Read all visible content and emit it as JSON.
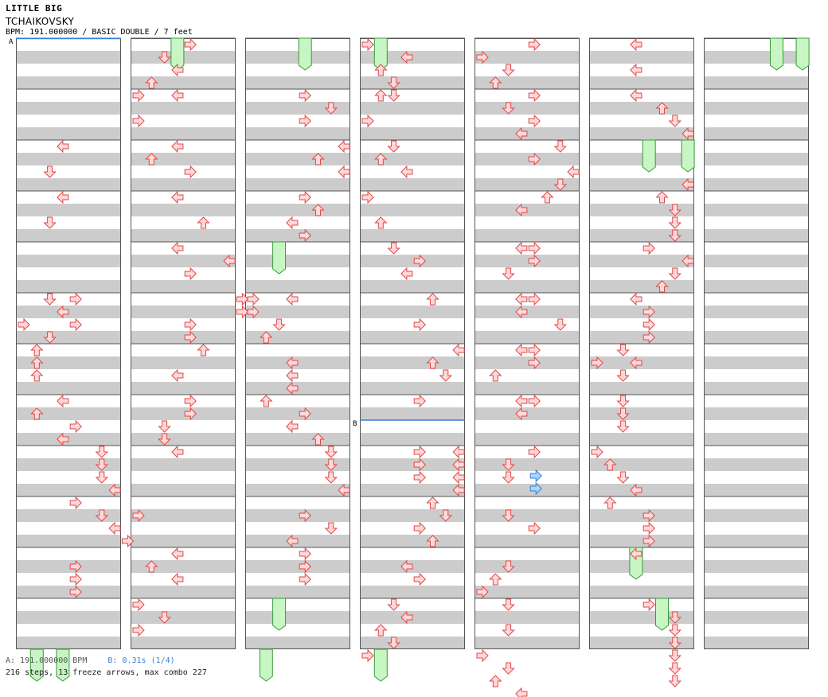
{
  "song": {
    "title": "LITTLE BIG",
    "artist": "TCHAIKOVSKY",
    "info": "BPM: 191.000000 / BASIC DOUBLE / 7 feet"
  },
  "markers": [
    {
      "label": "A"
    },
    {
      "label": "B"
    }
  ],
  "footer": {
    "bpm_a": "A: 191.000000 BPM",
    "bpm_b": "B: 0.31s (1/4)",
    "stats": "216 steps, 13 freeze arrows, max combo 227"
  },
  "colors": {
    "stripe": "#cccccc",
    "arrow_fill": "#ffd9d9",
    "arrow_stroke": "#e04848",
    "freeze_fill": "#c8f5c4",
    "freeze_stroke": "#3a9a3a",
    "stop_arrow_fill": "#a8d4ff",
    "stop_arrow_stroke": "#3a7fd6",
    "bpm_line": "#3a7fd6"
  },
  "chart_data": {
    "type": "step-chart",
    "columns": 7,
    "measures_per_column": 12,
    "lanes": [
      "left-1p",
      "down-1p",
      "up-1p",
      "right-1p",
      "left-2p",
      "down-2p",
      "up-2p",
      "right-2p"
    ],
    "arrows": [
      [
        0,
        1,
        4,
        3
      ],
      [
        0,
        1,
        6,
        2
      ],
      [
        0,
        3,
        0,
        3
      ],
      [
        0,
        3,
        2,
        2
      ],
      [
        0,
        4,
        4,
        4
      ],
      [
        0,
        4,
        6,
        4
      ],
      [
        0,
        5,
        0,
        2
      ],
      [
        0,
        5,
        1,
        3
      ],
      [
        0,
        5,
        2,
        0
      ],
      [
        0,
        5,
        3,
        2
      ],
      [
        0,
        6,
        0,
        1
      ],
      [
        0,
        6,
        1,
        1
      ],
      [
        0,
        6,
        2,
        1
      ],
      [
        0,
        7,
        0,
        3
      ],
      [
        0,
        7,
        1,
        1
      ],
      [
        0,
        7,
        2,
        4
      ],
      [
        0,
        7,
        3,
        3
      ],
      [
        0,
        8,
        0,
        6
      ],
      [
        0,
        8,
        1,
        6
      ],
      [
        0,
        8,
        2,
        6
      ],
      [
        0,
        8,
        3,
        7
      ],
      [
        0,
        9,
        0,
        4
      ],
      [
        0,
        9,
        1,
        6
      ],
      [
        0,
        9,
        2,
        7
      ],
      [
        0,
        9,
        3,
        8
      ],
      [
        0,
        10,
        1,
        4
      ],
      [
        0,
        10,
        2,
        4
      ],
      [
        0,
        10,
        3,
        4
      ],
      [
        1,
        0,
        0,
        4
      ],
      [
        1,
        0,
        1,
        2
      ],
      [
        1,
        0,
        2,
        3
      ],
      [
        1,
        0,
        3,
        1
      ],
      [
        1,
        1,
        0,
        0
      ],
      [
        1,
        1,
        0,
        3
      ],
      [
        1,
        1,
        2,
        0
      ],
      [
        1,
        2,
        0,
        3
      ],
      [
        1,
        2,
        1,
        1
      ],
      [
        1,
        2,
        2,
        4
      ],
      [
        1,
        3,
        0,
        3
      ],
      [
        1,
        3,
        2,
        5
      ],
      [
        1,
        4,
        0,
        3
      ],
      [
        1,
        4,
        1,
        7
      ],
      [
        1,
        4,
        2,
        4
      ],
      [
        1,
        5,
        0,
        8
      ],
      [
        1,
        5,
        1,
        8
      ],
      [
        1,
        5,
        2,
        4
      ],
      [
        1,
        5,
        3,
        4
      ],
      [
        1,
        6,
        0,
        5
      ],
      [
        1,
        6,
        2,
        3
      ],
      [
        1,
        7,
        0,
        4
      ],
      [
        1,
        7,
        1,
        4
      ],
      [
        1,
        7,
        2,
        2
      ],
      [
        1,
        7,
        3,
        2
      ],
      [
        1,
        8,
        0,
        3
      ],
      [
        1,
        9,
        1,
        0
      ],
      [
        1,
        10,
        0,
        3
      ],
      [
        1,
        10,
        1,
        1
      ],
      [
        1,
        10,
        2,
        3
      ],
      [
        1,
        11,
        0,
        0
      ],
      [
        1,
        11,
        1,
        2
      ],
      [
        1,
        11,
        2,
        0
      ],
      [
        2,
        1,
        0,
        4
      ],
      [
        2,
        1,
        1,
        6
      ],
      [
        2,
        1,
        2,
        4
      ],
      [
        2,
        2,
        0,
        7
      ],
      [
        2,
        2,
        1,
        5
      ],
      [
        2,
        2,
        2,
        7
      ],
      [
        2,
        3,
        0,
        4
      ],
      [
        2,
        3,
        1,
        5
      ],
      [
        2,
        3,
        2,
        3
      ],
      [
        2,
        3,
        3,
        4
      ],
      [
        2,
        5,
        0,
        0
      ],
      [
        2,
        5,
        0,
        3
      ],
      [
        2,
        5,
        1,
        0
      ],
      [
        2,
        5,
        2,
        2
      ],
      [
        2,
        5,
        3,
        1
      ],
      [
        2,
        6,
        1,
        3
      ],
      [
        2,
        6,
        2,
        3
      ],
      [
        2,
        6,
        3,
        3
      ],
      [
        2,
        7,
        0,
        1
      ],
      [
        2,
        7,
        1,
        4
      ],
      [
        2,
        7,
        2,
        3
      ],
      [
        2,
        7,
        3,
        5
      ],
      [
        2,
        8,
        0,
        6
      ],
      [
        2,
        8,
        1,
        6
      ],
      [
        2,
        8,
        2,
        6
      ],
      [
        2,
        8,
        3,
        7
      ],
      [
        2,
        9,
        1,
        4
      ],
      [
        2,
        9,
        2,
        6
      ],
      [
        2,
        9,
        3,
        3
      ],
      [
        2,
        10,
        0,
        4
      ],
      [
        2,
        10,
        1,
        4
      ],
      [
        2,
        10,
        2,
        4
      ],
      [
        3,
        0,
        0,
        0
      ],
      [
        3,
        0,
        1,
        3
      ],
      [
        3,
        0,
        2,
        1
      ],
      [
        3,
        0,
        3,
        2
      ],
      [
        3,
        1,
        0,
        1
      ],
      [
        3,
        1,
        0,
        2
      ],
      [
        3,
        1,
        2,
        0
      ],
      [
        3,
        2,
        0,
        2
      ],
      [
        3,
        2,
        1,
        1
      ],
      [
        3,
        2,
        2,
        3
      ],
      [
        3,
        3,
        0,
        0
      ],
      [
        3,
        3,
        2,
        1
      ],
      [
        3,
        4,
        0,
        2
      ],
      [
        3,
        4,
        1,
        4
      ],
      [
        3,
        4,
        2,
        3
      ],
      [
        3,
        5,
        0,
        5
      ],
      [
        3,
        5,
        2,
        4
      ],
      [
        3,
        6,
        0,
        7
      ],
      [
        3,
        6,
        1,
        5
      ],
      [
        3,
        6,
        2,
        6
      ],
      [
        3,
        7,
        0,
        4
      ],
      [
        3,
        8,
        0,
        4
      ],
      [
        3,
        8,
        0,
        7
      ],
      [
        3,
        8,
        1,
        4
      ],
      [
        3,
        8,
        1,
        7
      ],
      [
        3,
        8,
        2,
        4
      ],
      [
        3,
        8,
        2,
        7
      ],
      [
        3,
        8,
        3,
        7
      ],
      [
        3,
        9,
        0,
        5
      ],
      [
        3,
        9,
        1,
        6
      ],
      [
        3,
        9,
        2,
        4
      ],
      [
        3,
        9,
        3,
        5
      ],
      [
        3,
        10,
        1,
        3
      ],
      [
        3,
        10,
        2,
        4
      ],
      [
        3,
        11,
        0,
        2
      ],
      [
        3,
        11,
        1,
        3
      ],
      [
        3,
        11,
        2,
        1
      ],
      [
        3,
        11,
        3,
        2
      ],
      [
        3,
        12,
        0,
        0
      ],
      [
        4,
        0,
        0,
        4
      ],
      [
        4,
        0,
        1,
        0
      ],
      [
        4,
        0,
        2,
        2
      ],
      [
        4,
        0,
        3,
        1
      ],
      [
        4,
        1,
        0,
        4
      ],
      [
        4,
        1,
        1,
        2
      ],
      [
        4,
        1,
        2,
        4
      ],
      [
        4,
        1,
        3,
        3
      ],
      [
        4,
        2,
        0,
        6
      ],
      [
        4,
        2,
        1,
        4
      ],
      [
        4,
        2,
        2,
        7
      ],
      [
        4,
        2,
        3,
        6
      ],
      [
        4,
        3,
        0,
        5
      ],
      [
        4,
        3,
        1,
        3
      ],
      [
        4,
        4,
        0,
        3
      ],
      [
        4,
        4,
        0,
        4
      ],
      [
        4,
        4,
        1,
        4
      ],
      [
        4,
        4,
        2,
        2
      ],
      [
        4,
        5,
        0,
        3
      ],
      [
        4,
        5,
        0,
        4
      ],
      [
        4,
        5,
        1,
        3
      ],
      [
        4,
        5,
        2,
        6
      ],
      [
        4,
        6,
        0,
        3
      ],
      [
        4,
        6,
        0,
        4
      ],
      [
        4,
        6,
        1,
        4
      ],
      [
        4,
        6,
        2,
        1
      ],
      [
        4,
        7,
        0,
        3
      ],
      [
        4,
        7,
        0,
        4
      ],
      [
        4,
        7,
        1,
        3
      ],
      [
        4,
        8,
        0,
        4
      ],
      [
        4,
        8,
        1,
        2
      ],
      [
        4,
        8,
        2,
        2
      ],
      [
        4,
        9,
        1,
        2
      ],
      [
        4,
        9,
        2,
        4
      ],
      [
        4,
        10,
        1,
        2
      ],
      [
        4,
        10,
        2,
        1
      ],
      [
        4,
        10,
        3,
        0
      ],
      [
        4,
        11,
        0,
        2
      ],
      [
        4,
        11,
        2,
        2
      ],
      [
        4,
        12,
        0,
        0
      ],
      [
        4,
        12,
        1,
        2
      ],
      [
        4,
        12,
        2,
        1
      ],
      [
        4,
        12,
        3,
        3
      ],
      [
        5,
        0,
        0,
        3
      ],
      [
        5,
        0,
        2,
        3
      ],
      [
        5,
        1,
        0,
        3
      ],
      [
        5,
        1,
        1,
        5
      ],
      [
        5,
        1,
        2,
        6
      ],
      [
        5,
        1,
        3,
        7
      ],
      [
        5,
        2,
        3,
        7
      ],
      [
        5,
        3,
        0,
        5
      ],
      [
        5,
        3,
        1,
        6
      ],
      [
        5,
        3,
        2,
        6
      ],
      [
        5,
        3,
        3,
        6
      ],
      [
        5,
        4,
        0,
        4
      ],
      [
        5,
        4,
        1,
        7
      ],
      [
        5,
        4,
        2,
        6
      ],
      [
        5,
        4,
        3,
        5
      ],
      [
        5,
        5,
        0,
        3
      ],
      [
        5,
        5,
        1,
        4
      ],
      [
        5,
        5,
        2,
        4
      ],
      [
        5,
        5,
        3,
        4
      ],
      [
        5,
        6,
        0,
        2
      ],
      [
        5,
        6,
        1,
        3
      ],
      [
        5,
        6,
        1,
        0
      ],
      [
        5,
        6,
        2,
        2
      ],
      [
        5,
        7,
        0,
        2
      ],
      [
        5,
        7,
        1,
        2
      ],
      [
        5,
        7,
        2,
        2
      ],
      [
        5,
        8,
        0,
        0
      ],
      [
        5,
        8,
        1,
        1
      ],
      [
        5,
        8,
        2,
        2
      ],
      [
        5,
        8,
        3,
        3
      ],
      [
        5,
        9,
        0,
        1
      ],
      [
        5,
        9,
        1,
        4
      ],
      [
        5,
        9,
        2,
        4
      ],
      [
        5,
        9,
        3,
        4
      ],
      [
        5,
        10,
        0,
        3
      ],
      [
        5,
        11,
        0,
        4
      ],
      [
        5,
        11,
        1,
        6
      ],
      [
        5,
        11,
        2,
        6
      ],
      [
        5,
        11,
        3,
        6
      ],
      [
        5,
        12,
        0,
        6
      ],
      [
        5,
        12,
        1,
        6
      ],
      [
        5,
        12,
        2,
        6
      ]
    ],
    "freezes": [
      [
        0,
        12,
        3
      ],
      [
        0,
        12,
        1
      ],
      [
        1,
        0,
        3
      ],
      [
        2,
        0,
        4
      ],
      [
        2,
        4,
        2
      ],
      [
        2,
        11,
        2
      ],
      [
        2,
        12,
        1
      ],
      [
        3,
        0,
        1
      ],
      [
        3,
        12,
        1
      ],
      [
        5,
        2,
        4
      ],
      [
        5,
        2,
        7
      ],
      [
        5,
        10,
        3
      ],
      [
        5,
        11,
        5
      ],
      [
        6,
        0,
        5
      ],
      [
        6,
        0,
        7
      ]
    ],
    "stop_arrows": [
      [
        4,
        8,
        2
      ]
    ]
  }
}
